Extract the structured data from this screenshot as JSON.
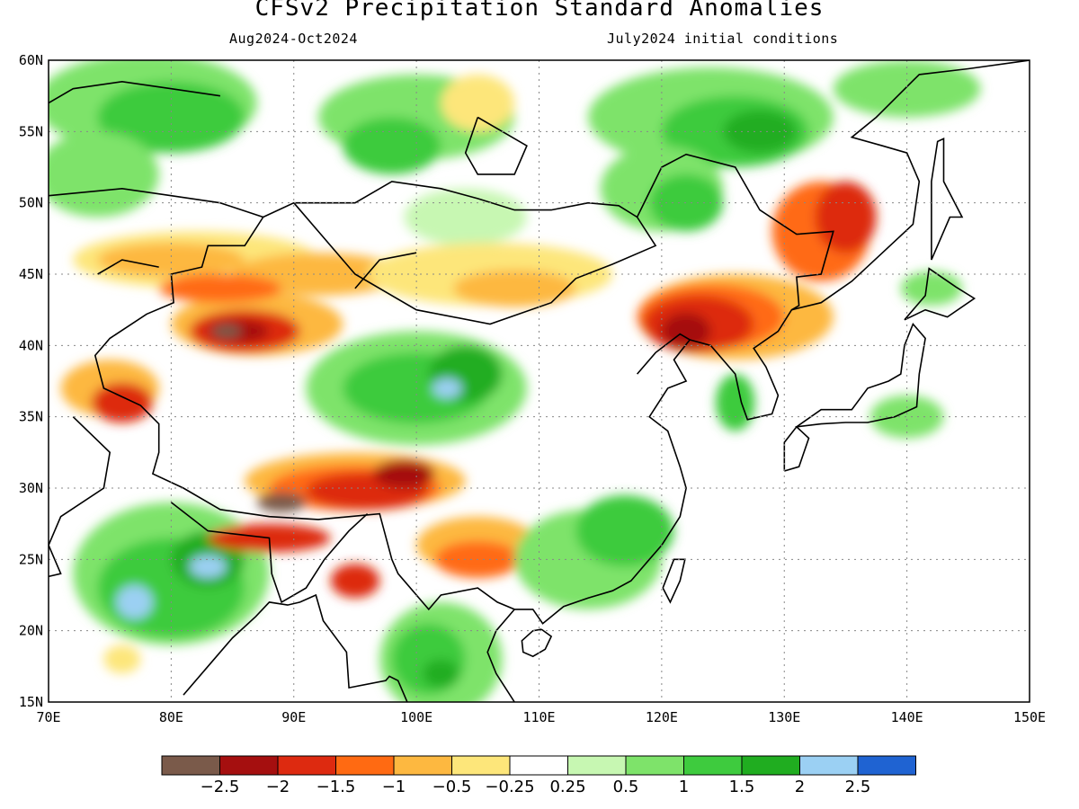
{
  "title": "CFSv2 Precipitation Standard Anomalies",
  "subtitle_left": "Aug2024-Oct2024",
  "subtitle_right": "July2024 initial conditions",
  "map": {
    "lon_range": [
      70,
      150
    ],
    "lat_range": [
      15,
      60
    ],
    "lat_labels": [
      "60N",
      "55N",
      "50N",
      "45N",
      "40N",
      "35N",
      "30N",
      "25N",
      "20N",
      "15N"
    ],
    "lon_labels": [
      "70E",
      "80E",
      "90E",
      "100E",
      "110E",
      "120E",
      "130E",
      "140E",
      "150E"
    ]
  },
  "colorbar": {
    "colors": [
      "#7a5a4a",
      "#a50f0f",
      "#dd2a10",
      "#ff6a12",
      "#fdb840",
      "#fde67a",
      "#ffffff",
      "#c7f7b2",
      "#7ee36a",
      "#3ecb3e",
      "#20ad20",
      "#9bd0f3",
      "#1f63d2"
    ],
    "labels": [
      "−2.5",
      "−2",
      "−1.5",
      "−1",
      "−0.5",
      "−0.25",
      "0.25",
      "0.5",
      "1",
      "1.5",
      "2",
      "2.5"
    ]
  },
  "colors": {
    "very_wet": "#20ad20",
    "wet": "#3ecb3e",
    "moist": "#7ee36a",
    "slight_wet": "#c7f7b2",
    "slight_dry": "#fde67a",
    "dry": "#fdb840",
    "drier": "#ff6a12",
    "very_dry": "#dd2a10",
    "extreme_dry": "#a50f0f",
    "max_dry": "#7a5a4a",
    "max_wet": "#9bd0f3"
  }
}
